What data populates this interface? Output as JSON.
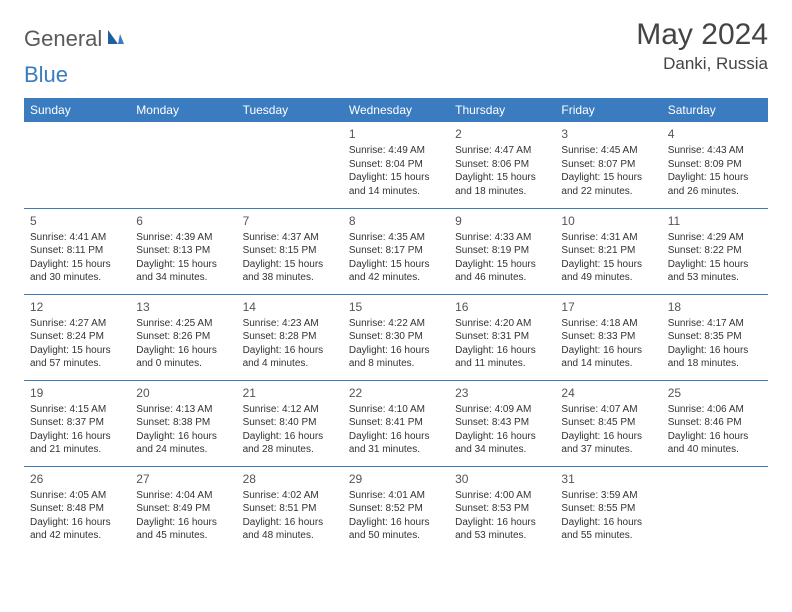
{
  "logo": {
    "text1": "General",
    "text2": "Blue"
  },
  "title": "May 2024",
  "location": "Danki, Russia",
  "colors": {
    "header_bg": "#3b7bbf",
    "header_text": "#ffffff",
    "border": "#3b7bbf",
    "body_text": "#333333",
    "logo_gray": "#5a5a5a",
    "logo_blue": "#3b7bbf"
  },
  "dayHeaders": [
    "Sunday",
    "Monday",
    "Tuesday",
    "Wednesday",
    "Thursday",
    "Friday",
    "Saturday"
  ],
  "weeks": [
    [
      null,
      null,
      null,
      {
        "n": "1",
        "sr": "4:49 AM",
        "ss": "8:04 PM",
        "dl": "15 hours and 14 minutes."
      },
      {
        "n": "2",
        "sr": "4:47 AM",
        "ss": "8:06 PM",
        "dl": "15 hours and 18 minutes."
      },
      {
        "n": "3",
        "sr": "4:45 AM",
        "ss": "8:07 PM",
        "dl": "15 hours and 22 minutes."
      },
      {
        "n": "4",
        "sr": "4:43 AM",
        "ss": "8:09 PM",
        "dl": "15 hours and 26 minutes."
      }
    ],
    [
      {
        "n": "5",
        "sr": "4:41 AM",
        "ss": "8:11 PM",
        "dl": "15 hours and 30 minutes."
      },
      {
        "n": "6",
        "sr": "4:39 AM",
        "ss": "8:13 PM",
        "dl": "15 hours and 34 minutes."
      },
      {
        "n": "7",
        "sr": "4:37 AM",
        "ss": "8:15 PM",
        "dl": "15 hours and 38 minutes."
      },
      {
        "n": "8",
        "sr": "4:35 AM",
        "ss": "8:17 PM",
        "dl": "15 hours and 42 minutes."
      },
      {
        "n": "9",
        "sr": "4:33 AM",
        "ss": "8:19 PM",
        "dl": "15 hours and 46 minutes."
      },
      {
        "n": "10",
        "sr": "4:31 AM",
        "ss": "8:21 PM",
        "dl": "15 hours and 49 minutes."
      },
      {
        "n": "11",
        "sr": "4:29 AM",
        "ss": "8:22 PM",
        "dl": "15 hours and 53 minutes."
      }
    ],
    [
      {
        "n": "12",
        "sr": "4:27 AM",
        "ss": "8:24 PM",
        "dl": "15 hours and 57 minutes."
      },
      {
        "n": "13",
        "sr": "4:25 AM",
        "ss": "8:26 PM",
        "dl": "16 hours and 0 minutes."
      },
      {
        "n": "14",
        "sr": "4:23 AM",
        "ss": "8:28 PM",
        "dl": "16 hours and 4 minutes."
      },
      {
        "n": "15",
        "sr": "4:22 AM",
        "ss": "8:30 PM",
        "dl": "16 hours and 8 minutes."
      },
      {
        "n": "16",
        "sr": "4:20 AM",
        "ss": "8:31 PM",
        "dl": "16 hours and 11 minutes."
      },
      {
        "n": "17",
        "sr": "4:18 AM",
        "ss": "8:33 PM",
        "dl": "16 hours and 14 minutes."
      },
      {
        "n": "18",
        "sr": "4:17 AM",
        "ss": "8:35 PM",
        "dl": "16 hours and 18 minutes."
      }
    ],
    [
      {
        "n": "19",
        "sr": "4:15 AM",
        "ss": "8:37 PM",
        "dl": "16 hours and 21 minutes."
      },
      {
        "n": "20",
        "sr": "4:13 AM",
        "ss": "8:38 PM",
        "dl": "16 hours and 24 minutes."
      },
      {
        "n": "21",
        "sr": "4:12 AM",
        "ss": "8:40 PM",
        "dl": "16 hours and 28 minutes."
      },
      {
        "n": "22",
        "sr": "4:10 AM",
        "ss": "8:41 PM",
        "dl": "16 hours and 31 minutes."
      },
      {
        "n": "23",
        "sr": "4:09 AM",
        "ss": "8:43 PM",
        "dl": "16 hours and 34 minutes."
      },
      {
        "n": "24",
        "sr": "4:07 AM",
        "ss": "8:45 PM",
        "dl": "16 hours and 37 minutes."
      },
      {
        "n": "25",
        "sr": "4:06 AM",
        "ss": "8:46 PM",
        "dl": "16 hours and 40 minutes."
      }
    ],
    [
      {
        "n": "26",
        "sr": "4:05 AM",
        "ss": "8:48 PM",
        "dl": "16 hours and 42 minutes."
      },
      {
        "n": "27",
        "sr": "4:04 AM",
        "ss": "8:49 PM",
        "dl": "16 hours and 45 minutes."
      },
      {
        "n": "28",
        "sr": "4:02 AM",
        "ss": "8:51 PM",
        "dl": "16 hours and 48 minutes."
      },
      {
        "n": "29",
        "sr": "4:01 AM",
        "ss": "8:52 PM",
        "dl": "16 hours and 50 minutes."
      },
      {
        "n": "30",
        "sr": "4:00 AM",
        "ss": "8:53 PM",
        "dl": "16 hours and 53 minutes."
      },
      {
        "n": "31",
        "sr": "3:59 AM",
        "ss": "8:55 PM",
        "dl": "16 hours and 55 minutes."
      },
      null
    ]
  ],
  "labels": {
    "sunrise": "Sunrise: ",
    "sunset": "Sunset: ",
    "daylight": "Daylight: "
  }
}
